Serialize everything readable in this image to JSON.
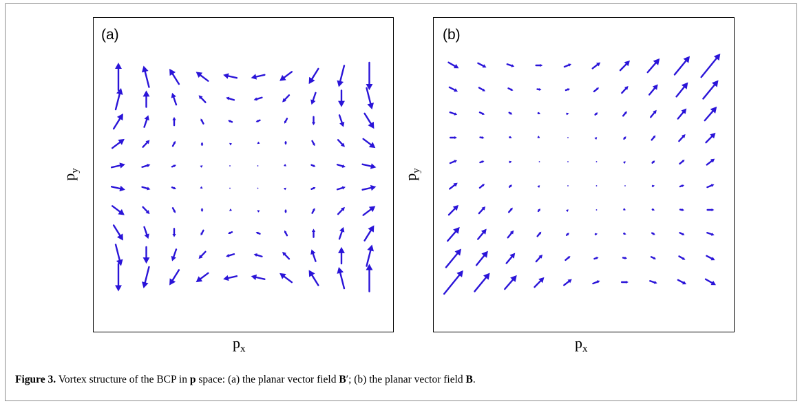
{
  "figure": {
    "caption_label": "Figure 3.",
    "caption_part1": " Vortex structure of the BCP in ",
    "caption_p": "p",
    "caption_part2": " space: (a) the planar vector field ",
    "caption_B1": "B",
    "caption_prime": "′",
    "caption_part3": "; (b) the planar vector field ",
    "caption_B2": "B",
    "caption_end": "."
  },
  "panels": [
    {
      "id": "a",
      "label": "(a)",
      "xlabel": "p",
      "xsub": "x",
      "ylabel": "p",
      "ysub": "y",
      "field": "B-prime"
    },
    {
      "id": "b",
      "label": "(b)",
      "xlabel": "p",
      "xsub": "x",
      "ylabel": "p",
      "ysub": "y",
      "field": "B"
    }
  ],
  "style": {
    "arrow_color": "#2a14d8",
    "border_color": "#000000"
  },
  "chart_data": [
    {
      "type": "quiver",
      "panel": "(a)",
      "xlabel": "p_x",
      "ylabel": "p_y",
      "grid": "10x10",
      "domain": [
        -1,
        1
      ],
      "field": "Bx = x^2 - y^2, By = -2xy"
    },
    {
      "type": "quiver",
      "panel": "(b)",
      "xlabel": "p_x",
      "ylabel": "p_y",
      "grid": "10x10",
      "domain": [
        -1,
        1
      ],
      "field": "Bx = x^2 + y^2 (sheared), By = 2xy + (x^2 + y^2)"
    }
  ]
}
